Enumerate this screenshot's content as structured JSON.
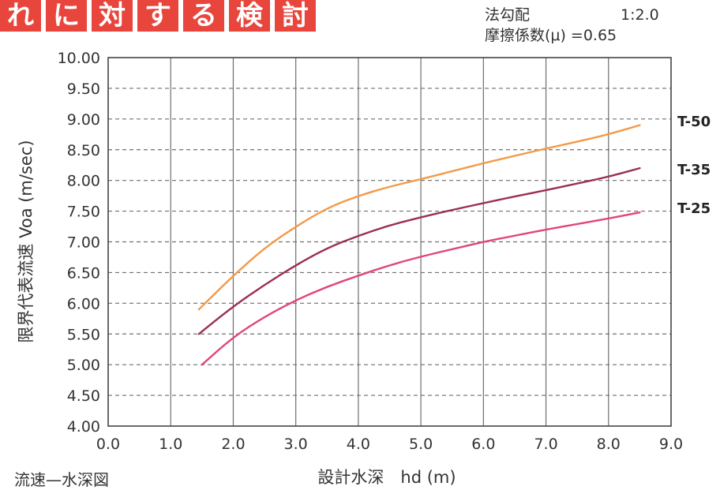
{
  "banner": {
    "chars": [
      "れ",
      "に",
      "対",
      "す",
      "る",
      "検",
      "討"
    ]
  },
  "params": {
    "slope_label": "法勾配",
    "slope_value": "1:2.0",
    "friction_label": "摩擦係数(μ)",
    "friction_value": "=0.65"
  },
  "caption": "流速—水深図",
  "chart_data": {
    "type": "line",
    "title": "",
    "xlabel": "設計水深　hd (m)",
    "ylabel": "限界代表流速 Voa (m/sec)",
    "xlim": [
      0.0,
      9.0
    ],
    "ylim": [
      4.0,
      10.0
    ],
    "x_ticks": [
      "0.0",
      "1.0",
      "2.0",
      "3.0",
      "4.0",
      "5.0",
      "6.0",
      "7.0",
      "8.0",
      "9.0"
    ],
    "y_ticks": [
      "4.00",
      "4.50",
      "5.00",
      "5.50",
      "6.00",
      "6.50",
      "7.00",
      "7.50",
      "8.00",
      "8.50",
      "9.00",
      "9.50",
      "10.00"
    ],
    "grid": {
      "vertical": "solid",
      "horizontal": "dashed"
    },
    "legend": "right, at line ends",
    "series": [
      {
        "name": "T-50",
        "color": "#f39a4a",
        "points": [
          [
            1.45,
            5.9
          ],
          [
            2.0,
            6.45
          ],
          [
            2.5,
            6.9
          ],
          [
            3.0,
            7.25
          ],
          [
            3.5,
            7.55
          ],
          [
            4.0,
            7.75
          ],
          [
            4.5,
            7.9
          ],
          [
            5.0,
            8.02
          ],
          [
            5.5,
            8.15
          ],
          [
            6.0,
            8.28
          ],
          [
            6.5,
            8.4
          ],
          [
            7.0,
            8.52
          ],
          [
            7.5,
            8.63
          ],
          [
            8.0,
            8.75
          ],
          [
            8.5,
            8.9
          ]
        ]
      },
      {
        "name": "T-35",
        "color": "#9c2f4f",
        "points": [
          [
            1.45,
            5.5
          ],
          [
            2.0,
            5.95
          ],
          [
            2.5,
            6.3
          ],
          [
            3.0,
            6.62
          ],
          [
            3.5,
            6.9
          ],
          [
            4.0,
            7.1
          ],
          [
            4.5,
            7.27
          ],
          [
            5.0,
            7.4
          ],
          [
            5.5,
            7.52
          ],
          [
            6.0,
            7.63
          ],
          [
            6.5,
            7.74
          ],
          [
            7.0,
            7.84
          ],
          [
            7.5,
            7.95
          ],
          [
            8.0,
            8.06
          ],
          [
            8.5,
            8.2
          ]
        ]
      },
      {
        "name": "T-25",
        "color": "#e0457d",
        "points": [
          [
            1.5,
            5.0
          ],
          [
            2.0,
            5.45
          ],
          [
            2.5,
            5.78
          ],
          [
            3.0,
            6.05
          ],
          [
            3.5,
            6.27
          ],
          [
            4.0,
            6.45
          ],
          [
            4.5,
            6.62
          ],
          [
            5.0,
            6.76
          ],
          [
            5.5,
            6.88
          ],
          [
            6.0,
            7.0
          ],
          [
            6.5,
            7.1
          ],
          [
            7.0,
            7.2
          ],
          [
            7.5,
            7.29
          ],
          [
            8.0,
            7.38
          ],
          [
            8.5,
            7.48
          ]
        ]
      }
    ]
  }
}
